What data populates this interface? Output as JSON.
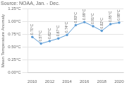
{
  "chart_data": {
    "type": "line",
    "title": "Source: NOAA, Jan. - Dec.",
    "ylabel": "Mean Temperature Anomaly",
    "x": [
      2010,
      2011,
      2012,
      2013,
      2014,
      2015,
      2016,
      2017,
      2018,
      2019,
      2020
    ],
    "values": [
      0.7,
      0.57,
      0.62,
      0.67,
      0.74,
      0.93,
      0.99,
      0.91,
      0.82,
      0.95,
      0.98
    ],
    "value_labels": [
      "0.70°C",
      "0.57°C",
      "0.62°C",
      "0.67°C",
      "0.74°C",
      "0.93°C",
      "0.99°C",
      "0.91°C",
      "0.82°C",
      "0.95°C",
      "0.98°C"
    ],
    "data_labels": true,
    "color": "#5b9bd5",
    "marker": "circle",
    "xlim": [
      2009.5,
      2020.5
    ],
    "xticks": [
      2010,
      2012,
      2014,
      2016,
      2018,
      2020
    ],
    "ylim": [
      0.0,
      1.25
    ],
    "yticks": [
      {
        "value": 0.0,
        "label": "0.00°C"
      },
      {
        "value": 0.25,
        "label": "0.25°C"
      },
      {
        "value": 0.5,
        "label": "0.50°C"
      },
      {
        "value": 0.75,
        "label": "0.75°C"
      },
      {
        "value": 1.0,
        "label": "1.00°C"
      },
      {
        "value": 1.25,
        "label": "1.25°C"
      }
    ],
    "grid": "y"
  }
}
